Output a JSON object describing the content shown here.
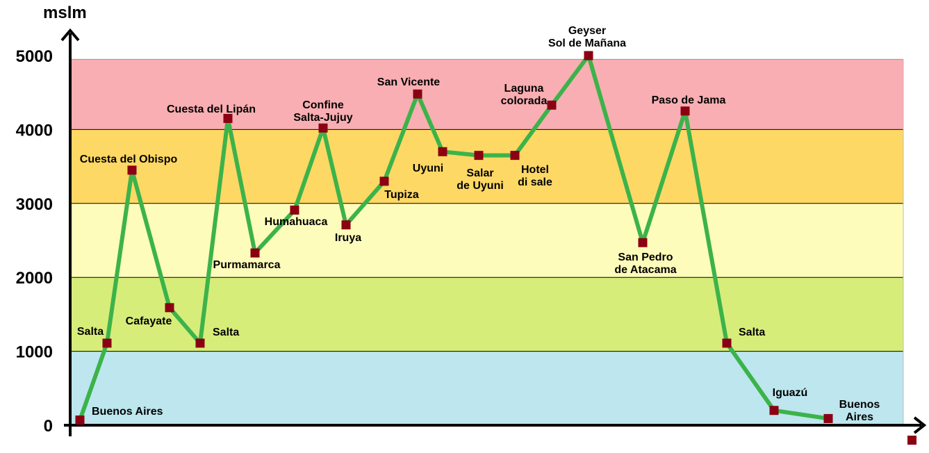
{
  "chart_data": {
    "type": "line",
    "ylabel": "mslm",
    "ylim": [
      0,
      5000
    ],
    "yticks": [
      0,
      1000,
      2000,
      3000,
      4000,
      5000
    ],
    "grid": true,
    "bands": [
      {
        "from": 0,
        "to": 1000,
        "color": "#bde6ee"
      },
      {
        "from": 1000,
        "to": 2000,
        "color": "#d6ed7a"
      },
      {
        "from": 2000,
        "to": 3000,
        "color": "#fefcbb"
      },
      {
        "from": 3000,
        "to": 4000,
        "color": "#fed865"
      },
      {
        "from": 4000,
        "to": 4950,
        "color": "#f8aeb2"
      }
    ],
    "line_color": "#3cb34a",
    "marker_color": "#8b0012",
    "series": [
      {
        "values": [
          70,
          1110,
          3450,
          1590,
          1110,
          4150,
          2330,
          2910,
          4020,
          2710,
          3300,
          4480,
          3700,
          3650,
          3650,
          4330,
          5000,
          2470,
          4250,
          1110,
          200,
          90
        ],
        "labels": [
          "Buenos Aires",
          "Salta",
          "Cuesta del Obispo",
          "Cafayate",
          "Salta",
          "Cuesta del Lipán",
          "Purmamarca",
          "Humahuaca",
          "Confine\nSalta-Jujuy",
          "Iruya",
          "Tupiza",
          "San Vicente",
          "Uyuni",
          "Salar\nde Uyuni",
          "Hotel\ndi sale",
          "Laguna\ncolorada",
          "Geyser\nSol de Mañana",
          "San Pedro\nde Atacama",
          "Paso de Jama",
          "Salta",
          "Iguazú",
          "Buenos\nAires"
        ]
      }
    ]
  }
}
